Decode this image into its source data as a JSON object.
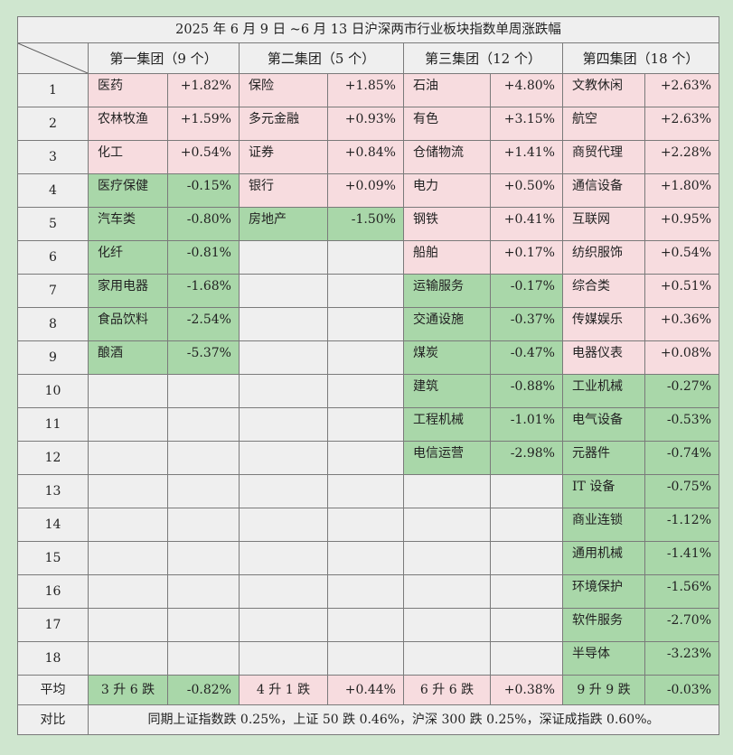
{
  "title": "2025 年 6 月 9 日 ~6 月 13 日沪深两市行业板块指数单周涨跌幅",
  "groups": [
    {
      "label": "第一集团（9 个）"
    },
    {
      "label": "第二集团（5 个）"
    },
    {
      "label": "第三集团（12 个）"
    },
    {
      "label": "第四集团（18 个）"
    }
  ],
  "rows": [
    {
      "idx": "1",
      "cells": [
        [
          "医药",
          "+1.82%",
          "up"
        ],
        [
          "保险",
          "+1.85%",
          "up"
        ],
        [
          "石油",
          "+4.80%",
          "up"
        ],
        [
          "文教休闲",
          "+2.63%",
          "up"
        ]
      ]
    },
    {
      "idx": "2",
      "cells": [
        [
          "农林牧渔",
          "+1.59%",
          "up"
        ],
        [
          "多元金融",
          "+0.93%",
          "up"
        ],
        [
          "有色",
          "+3.15%",
          "up"
        ],
        [
          "航空",
          "+2.63%",
          "up"
        ]
      ]
    },
    {
      "idx": "3",
      "cells": [
        [
          "化工",
          "+0.54%",
          "up"
        ],
        [
          "证券",
          "+0.84%",
          "up"
        ],
        [
          "仓储物流",
          "+1.41%",
          "up"
        ],
        [
          "商贸代理",
          "+2.28%",
          "up"
        ]
      ]
    },
    {
      "idx": "4",
      "cells": [
        [
          "医疗保健",
          "-0.15%",
          "down"
        ],
        [
          "银行",
          "+0.09%",
          "up"
        ],
        [
          "电力",
          "+0.50%",
          "up"
        ],
        [
          "通信设备",
          "+1.80%",
          "up"
        ]
      ]
    },
    {
      "idx": "5",
      "cells": [
        [
          "汽车类",
          "-0.80%",
          "down"
        ],
        [
          "房地产",
          "-1.50%",
          "down"
        ],
        [
          "钢铁",
          "+0.41%",
          "up"
        ],
        [
          "互联网",
          "+0.95%",
          "up"
        ]
      ]
    },
    {
      "idx": "6",
      "cells": [
        [
          "化纤",
          "-0.81%",
          "down"
        ],
        [
          "",
          "",
          ""
        ],
        [
          "船舶",
          "+0.17%",
          "up"
        ],
        [
          "纺织服饰",
          "+0.54%",
          "up"
        ]
      ]
    },
    {
      "idx": "7",
      "cells": [
        [
          "家用电器",
          "-1.68%",
          "down"
        ],
        [
          "",
          "",
          ""
        ],
        [
          "运输服务",
          "-0.17%",
          "down"
        ],
        [
          "综合类",
          "+0.51%",
          "up"
        ]
      ]
    },
    {
      "idx": "8",
      "cells": [
        [
          "食品饮料",
          "-2.54%",
          "down"
        ],
        [
          "",
          "",
          ""
        ],
        [
          "交通设施",
          "-0.37%",
          "down"
        ],
        [
          "传媒娱乐",
          "+0.36%",
          "up"
        ]
      ]
    },
    {
      "idx": "9",
      "cells": [
        [
          "酿酒",
          "-5.37%",
          "down"
        ],
        [
          "",
          "",
          ""
        ],
        [
          "煤炭",
          "-0.47%",
          "down"
        ],
        [
          "电器仪表",
          "+0.08%",
          "up"
        ]
      ]
    },
    {
      "idx": "10",
      "cells": [
        [
          "",
          "",
          ""
        ],
        [
          "",
          "",
          ""
        ],
        [
          "建筑",
          "-0.88%",
          "down"
        ],
        [
          "工业机械",
          "-0.27%",
          "down"
        ]
      ]
    },
    {
      "idx": "11",
      "cells": [
        [
          "",
          "",
          ""
        ],
        [
          "",
          "",
          ""
        ],
        [
          "工程机械",
          "-1.01%",
          "down"
        ],
        [
          "电气设备",
          "-0.53%",
          "down"
        ]
      ]
    },
    {
      "idx": "12",
      "cells": [
        [
          "",
          "",
          ""
        ],
        [
          "",
          "",
          ""
        ],
        [
          "电信运营",
          "-2.98%",
          "down"
        ],
        [
          "元器件",
          "-0.74%",
          "down"
        ]
      ]
    },
    {
      "idx": "13",
      "cells": [
        [
          "",
          "",
          ""
        ],
        [
          "",
          "",
          ""
        ],
        [
          "",
          "",
          ""
        ],
        [
          "IT 设备",
          "-0.75%",
          "down"
        ]
      ]
    },
    {
      "idx": "14",
      "cells": [
        [
          "",
          "",
          ""
        ],
        [
          "",
          "",
          ""
        ],
        [
          "",
          "",
          ""
        ],
        [
          "商业连锁",
          "-1.12%",
          "down"
        ]
      ]
    },
    {
      "idx": "15",
      "cells": [
        [
          "",
          "",
          ""
        ],
        [
          "",
          "",
          ""
        ],
        [
          "",
          "",
          ""
        ],
        [
          "通用机械",
          "-1.41%",
          "down"
        ]
      ]
    },
    {
      "idx": "16",
      "cells": [
        [
          "",
          "",
          ""
        ],
        [
          "",
          "",
          ""
        ],
        [
          "",
          "",
          ""
        ],
        [
          "环境保护",
          "-1.56%",
          "down"
        ]
      ]
    },
    {
      "idx": "17",
      "cells": [
        [
          "",
          "",
          ""
        ],
        [
          "",
          "",
          ""
        ],
        [
          "",
          "",
          ""
        ],
        [
          "软件服务",
          "-2.70%",
          "down"
        ]
      ]
    },
    {
      "idx": "18",
      "cells": [
        [
          "",
          "",
          ""
        ],
        [
          "",
          "",
          ""
        ],
        [
          "",
          "",
          ""
        ],
        [
          "半导体",
          "-3.23%",
          "down"
        ]
      ]
    }
  ],
  "average": {
    "label": "平均",
    "cells": [
      [
        "3 升 6 跌",
        "-0.82%",
        "down"
      ],
      [
        "4 升 1 跌",
        "+0.44%",
        "up"
      ],
      [
        "6 升 6 跌",
        "+0.38%",
        "up"
      ],
      [
        "9 升 9 跌",
        "-0.03%",
        "down"
      ]
    ]
  },
  "compare": {
    "label": "对比",
    "text": "同期上证指数跌 0.25%，上证 50 跌 0.46%，沪深 300 跌 0.25%，深证成指跌 0.60%。"
  },
  "colors": {
    "up": "#f7dcdf",
    "down": "#a9d7a9",
    "empty": "#efefef",
    "page": "#cfe6cf"
  }
}
